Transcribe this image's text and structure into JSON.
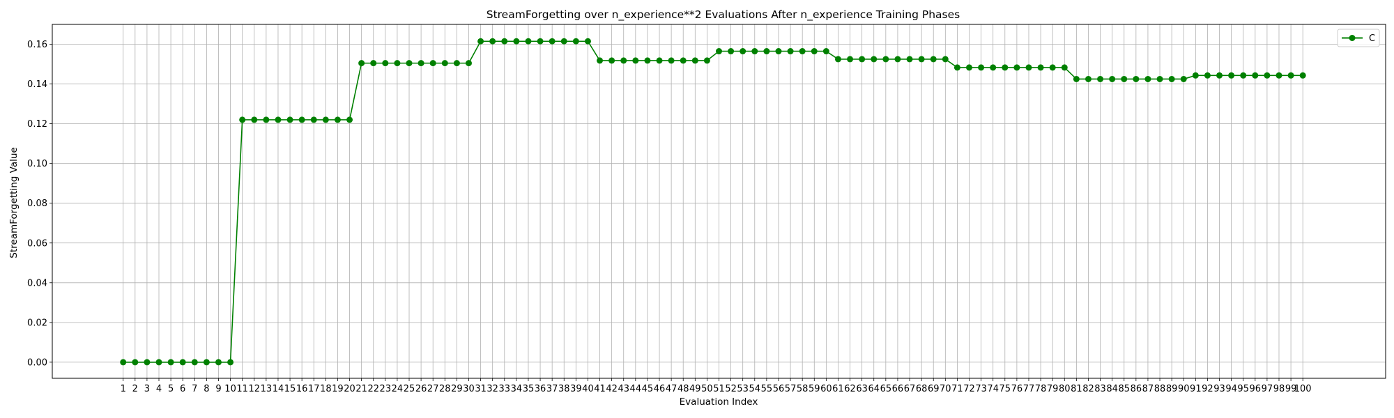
{
  "chart_data": {
    "type": "line",
    "title": "StreamForgetting over n_experience**2 Evaluations After n_experience Training Phases",
    "xlabel": "Evaluation Index",
    "ylabel": "StreamForgetting Value",
    "xlim": [
      -4.95,
      106.95
    ],
    "ylim": [
      -0.0081,
      0.17
    ],
    "yticks": [
      0.0,
      0.02,
      0.04,
      0.06,
      0.08,
      0.1,
      0.12,
      0.14,
      0.16
    ],
    "ytick_labels": [
      "0.00",
      "0.02",
      "0.04",
      "0.06",
      "0.08",
      "0.10",
      "0.12",
      "0.14",
      "0.16"
    ],
    "grid": true,
    "legend_position": "top-right",
    "series": [
      {
        "name": "C",
        "color": "#008000",
        "marker": "circle",
        "x": [
          1,
          2,
          3,
          4,
          5,
          6,
          7,
          8,
          9,
          10,
          11,
          12,
          13,
          14,
          15,
          16,
          17,
          18,
          19,
          20,
          21,
          22,
          23,
          24,
          25,
          26,
          27,
          28,
          29,
          30,
          31,
          32,
          33,
          34,
          35,
          36,
          37,
          38,
          39,
          40,
          41,
          42,
          43,
          44,
          45,
          46,
          47,
          48,
          49,
          50,
          51,
          52,
          53,
          54,
          55,
          56,
          57,
          58,
          59,
          60,
          61,
          62,
          63,
          64,
          65,
          66,
          67,
          68,
          69,
          70,
          71,
          72,
          73,
          74,
          75,
          76,
          77,
          78,
          79,
          80,
          81,
          82,
          83,
          84,
          85,
          86,
          87,
          88,
          89,
          90,
          91,
          92,
          93,
          94,
          95,
          96,
          97,
          98,
          99,
          100
        ],
        "values": [
          0.0,
          0.0,
          0.0,
          0.0,
          0.0,
          0.0,
          0.0,
          0.0,
          0.0,
          0.0,
          0.122,
          0.122,
          0.122,
          0.122,
          0.122,
          0.122,
          0.122,
          0.122,
          0.122,
          0.122,
          0.1505,
          0.1505,
          0.1505,
          0.1505,
          0.1505,
          0.1505,
          0.1505,
          0.1505,
          0.1505,
          0.1505,
          0.1615,
          0.1615,
          0.1615,
          0.1615,
          0.1615,
          0.1615,
          0.1615,
          0.1615,
          0.1615,
          0.1615,
          0.1518,
          0.1518,
          0.1518,
          0.1518,
          0.1518,
          0.1518,
          0.1518,
          0.1518,
          0.1518,
          0.1518,
          0.1565,
          0.1565,
          0.1565,
          0.1565,
          0.1565,
          0.1565,
          0.1565,
          0.1565,
          0.1565,
          0.1565,
          0.1525,
          0.1525,
          0.1525,
          0.1525,
          0.1525,
          0.1525,
          0.1525,
          0.1525,
          0.1525,
          0.1525,
          0.1483,
          0.1483,
          0.1483,
          0.1483,
          0.1483,
          0.1483,
          0.1483,
          0.1483,
          0.1483,
          0.1483,
          0.1425,
          0.1425,
          0.1425,
          0.1425,
          0.1425,
          0.1425,
          0.1425,
          0.1425,
          0.1425,
          0.1425,
          0.1443,
          0.1443,
          0.1443,
          0.1443,
          0.1443,
          0.1443,
          0.1443,
          0.1443,
          0.1443,
          0.1443
        ]
      }
    ]
  }
}
